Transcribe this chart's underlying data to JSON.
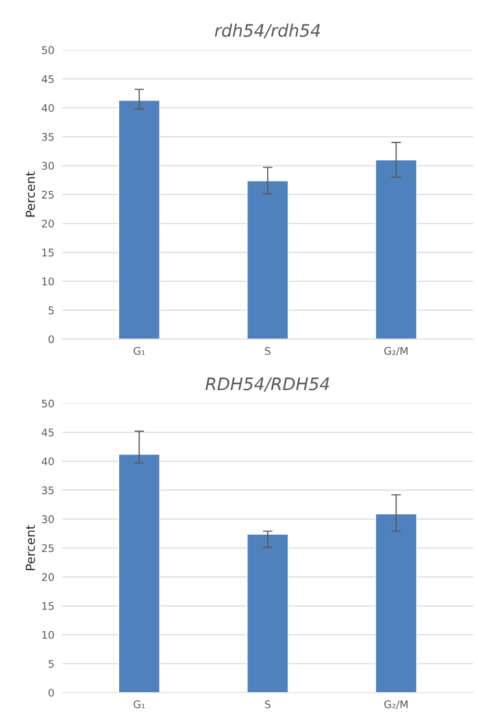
{
  "chart_data": [
    {
      "type": "bar",
      "title": "rdh54/rdh54",
      "ylabel": "Percent",
      "categories": [
        "G₁",
        "S",
        "G₂/M"
      ],
      "color": "#4f81bd",
      "values": [
        41.3,
        27.4,
        31.0
      ],
      "errors": [
        [
          39.8,
          43.2
        ],
        [
          25.1,
          29.7
        ],
        [
          28.0,
          34.0
        ]
      ],
      "ylim": [
        0,
        50
      ],
      "yticks": [
        0,
        5,
        10,
        15,
        20,
        25,
        30,
        35,
        40,
        45,
        50
      ],
      "grid": "y"
    },
    {
      "type": "bar",
      "title": "RDH54/RDH54",
      "ylabel": "Percent",
      "categories": [
        "G₁",
        "S",
        "G₂/M"
      ],
      "color": "#4f81bd",
      "values": [
        41.2,
        27.4,
        30.9
      ],
      "errors": [
        [
          39.7,
          45.2
        ],
        [
          25.1,
          27.9
        ],
        [
          27.9,
          34.2
        ]
      ],
      "ylim": [
        0,
        50
      ],
      "yticks": [
        0,
        5,
        10,
        15,
        20,
        25,
        30,
        35,
        40,
        45,
        50
      ],
      "grid": "y"
    }
  ]
}
